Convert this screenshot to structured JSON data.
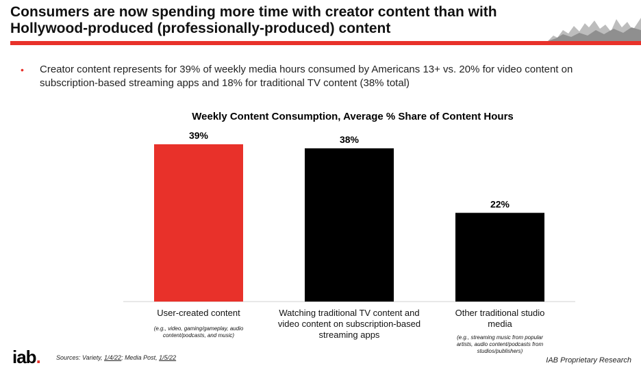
{
  "slide": {
    "title": "Consumers are now spending more time with creator content than with Hollywood-produced (professionally-produced) content",
    "bullet": "Creator content represents for 39% of weekly media hours consumed by Americans 13+ vs. 20% for video content on subscription-based streaming apps and 18% for traditional TV content (38% total)"
  },
  "chart_data": {
    "type": "bar",
    "title": "Weekly Content Consumption, Average % Share of Content Hours",
    "categories": [
      "User-created content",
      "Watching traditional TV content and video content on subscription-based streaming apps",
      "Other traditional studio media"
    ],
    "category_notes": [
      "(e.g., video, gaming/gameplay, audio content/podcasts, and music)",
      "",
      "(e.g., streaming music from popular artists, audio content/podcasts from studios/publishers)"
    ],
    "values": [
      39,
      38,
      22
    ],
    "value_labels": [
      "39%",
      "38%",
      "22%"
    ],
    "colors": [
      "#e8312a",
      "#000000",
      "#000000"
    ],
    "ylim": [
      0,
      39
    ],
    "grid": false,
    "xlabel": "",
    "ylabel": ""
  },
  "footer": {
    "logo_text": "iab",
    "logo_dot": ".",
    "sources_prefix": "Sources: Variety, ",
    "source1_date": "1/4/22",
    "sources_mid": "; Media Post, ",
    "source2_date": "1/5/22",
    "proprietary": "IAB Proprietary Research"
  },
  "colors": {
    "accent": "#e8312a",
    "bar_dark": "#000000"
  },
  "icons": {
    "header_art": "mountain-skyline-icon"
  }
}
